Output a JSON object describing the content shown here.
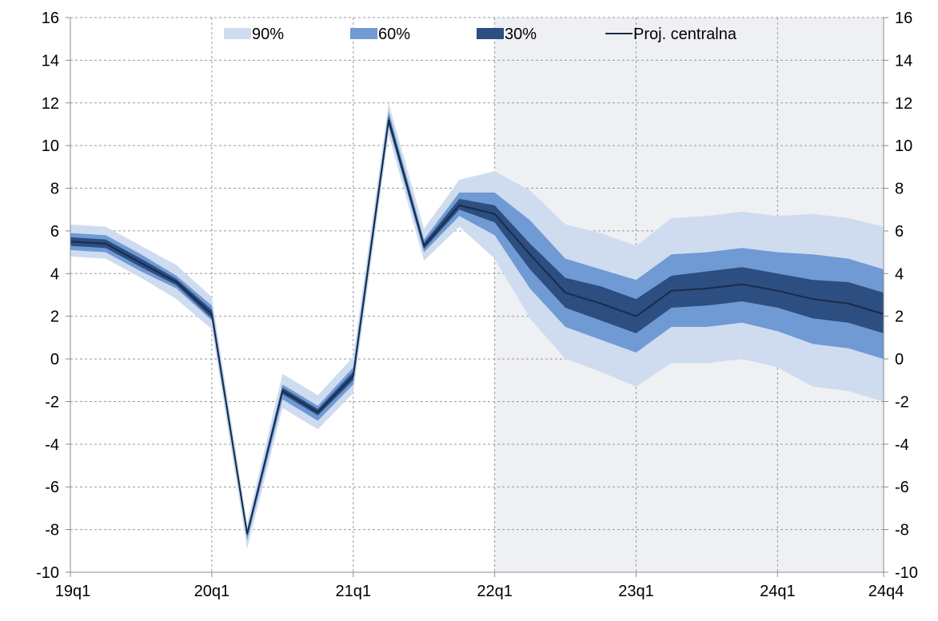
{
  "chart_data": {
    "type": "area",
    "x": [
      "19q1",
      "19q2",
      "19q3",
      "19q4",
      "20q1",
      "20q2",
      "20q3",
      "20q4",
      "21q1",
      "21q2",
      "21q3",
      "21q4",
      "22q1",
      "22q2",
      "22q3",
      "22q4",
      "23q1",
      "23q2",
      "23q3",
      "23q4",
      "24q1",
      "24q2",
      "24q3",
      "24q4"
    ],
    "x_tick_labels": [
      "19q1",
      "20q1",
      "21q1",
      "22q1",
      "23q1",
      "24q1",
      "24q4"
    ],
    "x_tick_positions": [
      "19q1",
      "20q1",
      "21q1",
      "22q1",
      "23q1",
      "24q1",
      "24q4"
    ],
    "ylim": [
      -10,
      16
    ],
    "y_ticks": [
      -10,
      -8,
      -6,
      -4,
      -2,
      0,
      2,
      4,
      6,
      8,
      10,
      12,
      14,
      16
    ],
    "grid": true,
    "secondary_y_axis": true,
    "legend_position": "top",
    "projection_start": "22q1",
    "series": [
      {
        "name": "Proj. centralna",
        "values": [
          5.5,
          5.4,
          4.5,
          3.6,
          2.1,
          -8.2,
          -1.5,
          -2.5,
          -0.8,
          11.2,
          5.3,
          7.2,
          6.8,
          4.9,
          3.1,
          2.6,
          2.0,
          3.2,
          3.3,
          3.5,
          3.2,
          2.8,
          2.6,
          2.1
        ]
      }
    ],
    "bands": [
      {
        "name": "90%",
        "color": "#cfdcef",
        "upper": [
          6.3,
          6.2,
          5.3,
          4.4,
          2.9,
          -7.7,
          -0.7,
          -1.7,
          0.1,
          12.0,
          6.1,
          8.4,
          8.8,
          7.9,
          6.3,
          5.9,
          5.3,
          6.6,
          6.7,
          6.9,
          6.7,
          6.8,
          6.6,
          6.2
        ],
        "lower": [
          4.8,
          4.7,
          3.8,
          2.8,
          1.4,
          -8.9,
          -2.3,
          -3.3,
          -1.6,
          10.5,
          4.6,
          6.2,
          4.7,
          1.9,
          0.0,
          -0.6,
          -1.3,
          -0.2,
          -0.2,
          0.0,
          -0.4,
          -1.3,
          -1.5,
          -2.0
        ]
      },
      {
        "name": "60%",
        "color": "#6f9ad3",
        "upper": [
          5.9,
          5.8,
          4.9,
          3.9,
          2.5,
          -8.0,
          -1.2,
          -2.2,
          -0.4,
          11.6,
          5.6,
          7.8,
          7.8,
          6.5,
          4.7,
          4.2,
          3.7,
          4.9,
          5.0,
          5.2,
          5.0,
          4.9,
          4.7,
          4.2
        ],
        "lower": [
          5.1,
          5.0,
          4.1,
          3.3,
          1.8,
          -8.5,
          -1.9,
          -2.9,
          -1.2,
          10.9,
          5.0,
          6.7,
          5.8,
          3.3,
          1.5,
          0.9,
          0.3,
          1.5,
          1.5,
          1.7,
          1.3,
          0.7,
          0.5,
          0.0
        ]
      },
      {
        "name": "30%",
        "color": "#2c4e80",
        "upper": [
          5.7,
          5.6,
          4.7,
          3.75,
          2.3,
          -8.1,
          -1.35,
          -2.35,
          -0.6,
          11.4,
          5.45,
          7.5,
          7.2,
          5.4,
          3.8,
          3.4,
          2.8,
          3.9,
          4.1,
          4.3,
          4.0,
          3.7,
          3.6,
          3.1
        ],
        "lower": [
          5.3,
          5.2,
          4.3,
          3.45,
          1.9,
          -8.3,
          -1.65,
          -2.65,
          -1.0,
          11.0,
          5.15,
          7.0,
          6.4,
          4.2,
          2.4,
          1.8,
          1.2,
          2.4,
          2.5,
          2.7,
          2.4,
          1.9,
          1.7,
          1.2
        ]
      }
    ],
    "legend": [
      {
        "label": "90%",
        "color": "#cfdcef",
        "kind": "swatch"
      },
      {
        "label": "60%",
        "color": "#6f9ad3",
        "kind": "swatch"
      },
      {
        "label": "30%",
        "color": "#2c4e80",
        "kind": "swatch"
      },
      {
        "label": "Proj. centralna",
        "color": "#1a2b4a",
        "kind": "line"
      }
    ],
    "colors": {
      "projection_background": "#eef0f3",
      "grid": "#9a9a9a",
      "central_line": "#1a2b4a"
    }
  }
}
